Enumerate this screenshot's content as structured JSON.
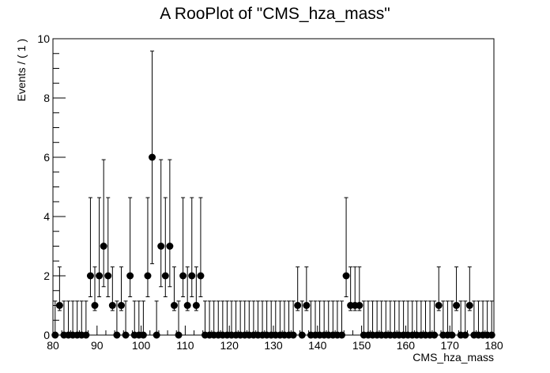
{
  "chart_data": {
    "type": "scatter",
    "title": "A RooPlot of \"CMS_hza_mass\"",
    "xlabel": "CMS_hza_mass",
    "ylabel": "Events / ( 1 )",
    "xlim": [
      80,
      180
    ],
    "ylim": [
      0,
      10
    ],
    "x_ticks": [
      "80",
      "90",
      "100",
      "110",
      "120",
      "130",
      "140",
      "150",
      "160",
      "170",
      "180"
    ],
    "y_ticks": [
      "0",
      "2",
      "4",
      "6",
      "8",
      "10"
    ],
    "bin_width": 1,
    "x": [
      80.5,
      81.5,
      82.5,
      83.5,
      84.5,
      85.5,
      86.5,
      87.5,
      88.5,
      89.5,
      90.5,
      91.5,
      92.5,
      93.5,
      94.5,
      95.5,
      96.5,
      97.5,
      98.5,
      99.5,
      100.5,
      101.5,
      102.5,
      103.5,
      104.5,
      105.5,
      106.5,
      107.5,
      108.5,
      109.5,
      110.5,
      111.5,
      112.5,
      113.5,
      114.5,
      115.5,
      116.5,
      117.5,
      118.5,
      119.5,
      120.5,
      121.5,
      122.5,
      123.5,
      124.5,
      125.5,
      126.5,
      127.5,
      128.5,
      129.5,
      130.5,
      131.5,
      132.5,
      133.5,
      134.5,
      135.5,
      136.5,
      137.5,
      138.5,
      139.5,
      140.5,
      141.5,
      142.5,
      143.5,
      144.5,
      145.5,
      146.5,
      147.5,
      148.5,
      149.5,
      150.5,
      151.5,
      152.5,
      153.5,
      154.5,
      155.5,
      156.5,
      157.5,
      158.5,
      159.5,
      160.5,
      161.5,
      162.5,
      163.5,
      164.5,
      165.5,
      166.5,
      167.5,
      168.5,
      169.5,
      170.5,
      171.5,
      172.5,
      173.5,
      174.5,
      175.5,
      176.5,
      177.5,
      178.5,
      179.5
    ],
    "values": [
      0,
      1,
      0,
      0,
      0,
      0,
      0,
      0,
      2,
      1,
      2,
      3,
      2,
      1,
      0,
      1,
      0,
      2,
      0,
      0,
      0,
      2,
      6,
      0,
      3,
      2,
      3,
      1,
      0,
      2,
      1,
      2,
      1,
      2,
      0,
      0,
      0,
      0,
      0,
      0,
      0,
      0,
      0,
      0,
      0,
      0,
      0,
      0,
      0,
      0,
      0,
      0,
      0,
      0,
      0,
      1,
      0,
      1,
      0,
      0,
      0,
      0,
      0,
      0,
      0,
      0,
      2,
      1,
      1,
      1,
      0,
      0,
      0,
      0,
      0,
      0,
      0,
      0,
      0,
      0,
      0,
      0,
      0,
      0,
      0,
      0,
      0,
      1,
      0,
      0,
      0,
      1,
      0,
      0,
      1,
      0,
      0,
      0,
      0,
      0
    ],
    "error_bars": "poisson",
    "marker_color": "#000000"
  }
}
